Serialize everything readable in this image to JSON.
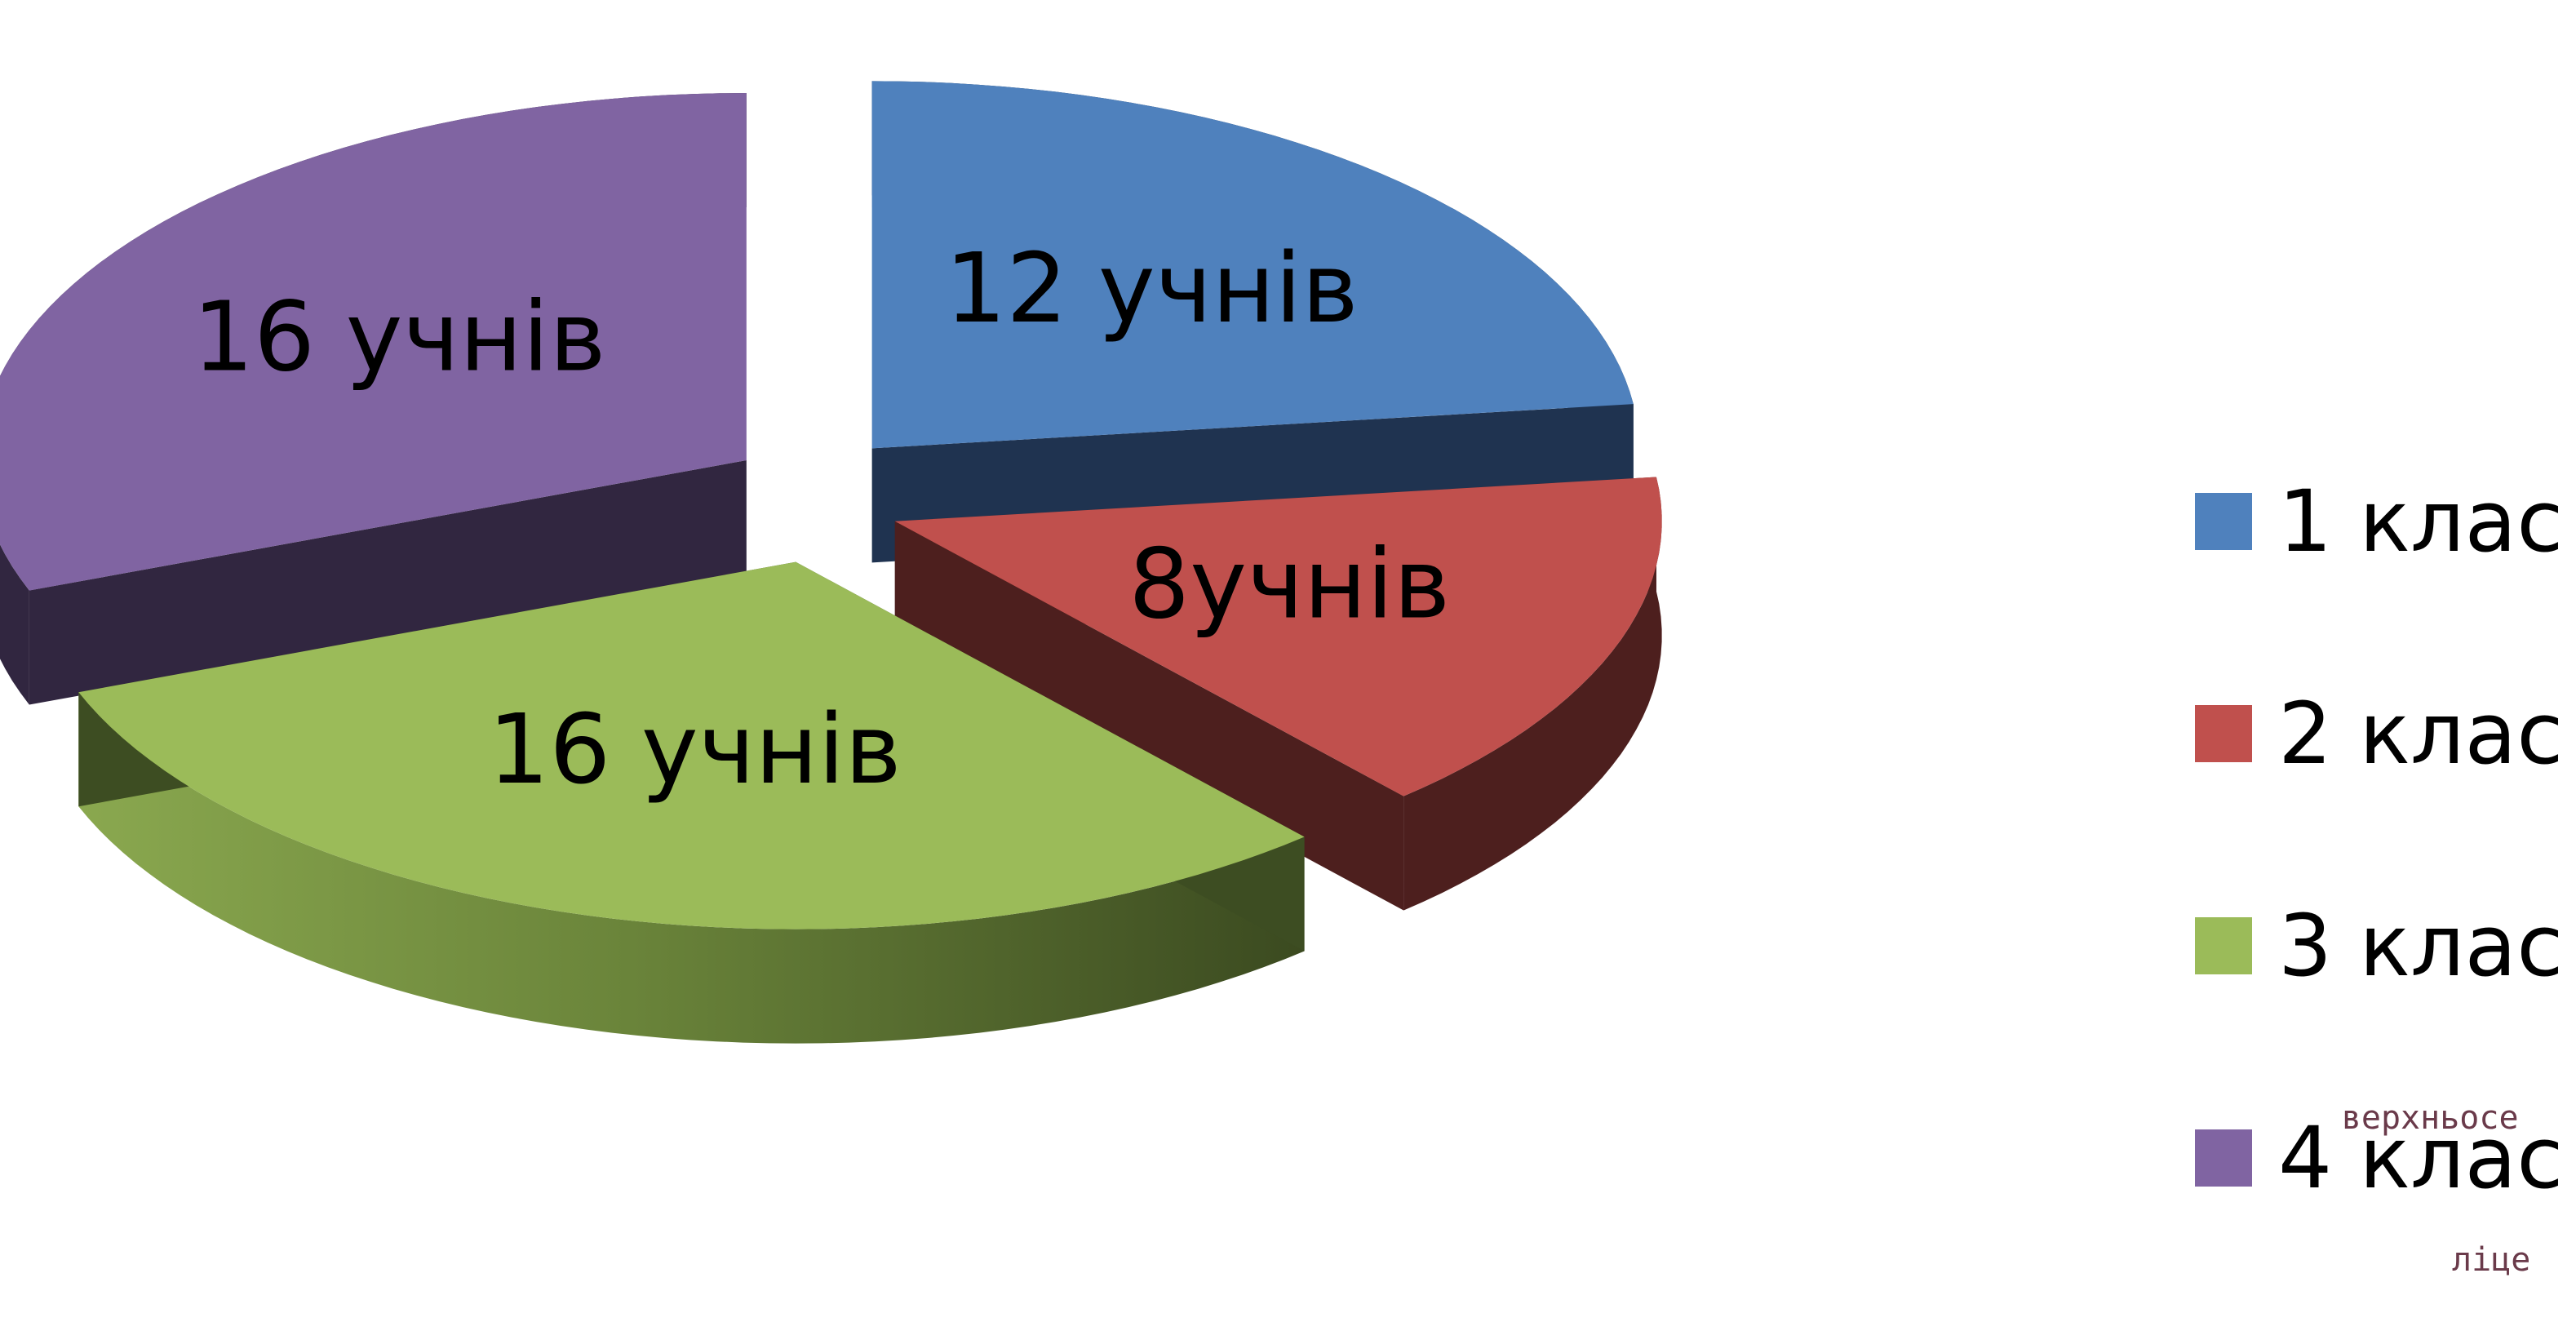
{
  "chart_data": {
    "type": "pie",
    "style": "3d-exploded",
    "legend_position": "right",
    "slices": [
      {
        "legend": "1 клас",
        "label": "12 учнів",
        "value": 12,
        "color": "#4f81bd",
        "side": "#1f3350"
      },
      {
        "legend": "2 клас",
        "label": "8учнів",
        "value": 8,
        "color": "#c0504d",
        "side": "#4d1f1e"
      },
      {
        "legend": "3 клас",
        "label": "16 учнів",
        "value": 16,
        "color": "#9bbb59",
        "side": "#3d4d22"
      },
      {
        "legend": "4 клас",
        "label": "16 учнів",
        "value": 16,
        "color": "#8064a2",
        "side": "#312640"
      }
    ]
  },
  "tooltip": {
    "line1": "верхньосе",
    "line2": "ліце"
  }
}
